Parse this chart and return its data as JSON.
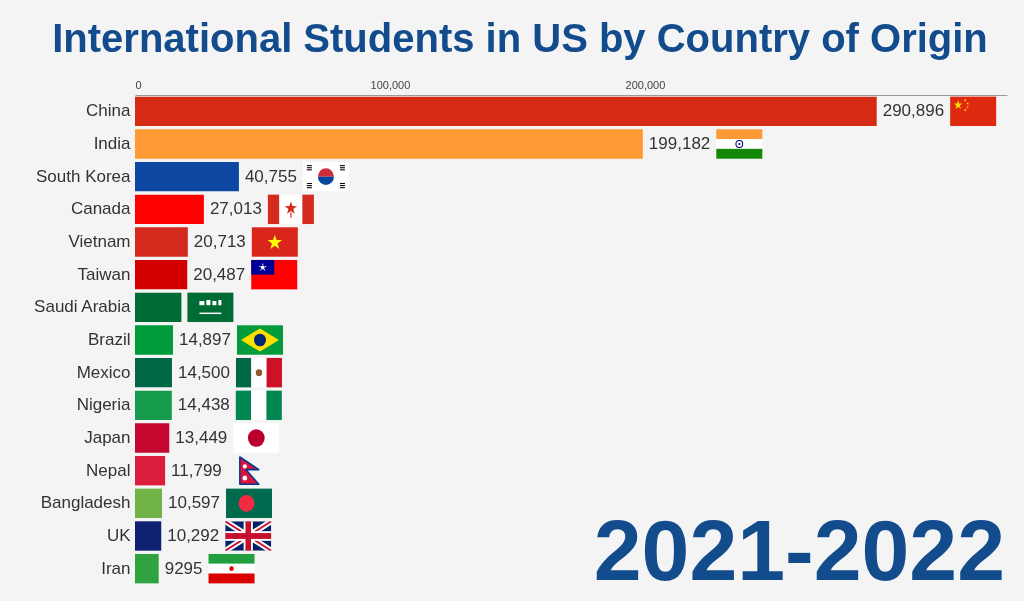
{
  "chart_data": {
    "type": "bar",
    "orientation": "horizontal",
    "title": "International Students in US by Country of Origin",
    "categories": [
      "China",
      "India",
      "South Korea",
      "Canada",
      "Vietnam",
      "Taiwan",
      "Saudi Arabia",
      "Brazil",
      "Mexico",
      "Nigeria",
      "Japan",
      "Nepal",
      "Bangladesh",
      "UK",
      "Iran"
    ],
    "values": [
      290896,
      199182,
      40755,
      27013,
      20713,
      20487,
      18200,
      14897,
      14500,
      14438,
      13449,
      11799,
      10597,
      10292,
      9295
    ],
    "colors": [
      "#d52b14",
      "#fd9a33",
      "#0d47a1",
      "#ff0000",
      "#d42a1e",
      "#d40000",
      "#006c35",
      "#009c3b",
      "#006847",
      "#169b4d",
      "#c4082e",
      "#dc1c3c",
      "#72b347",
      "#0d2170",
      "#2ea33f"
    ],
    "value_labels": [
      "290,896",
      "199,182",
      "40,755",
      "27,013",
      "20,713",
      "20,487",
      null,
      "14,897",
      "14,500",
      "14,438",
      "13,449",
      "11,799",
      "10,597",
      "10,292",
      "9295"
    ],
    "xlim": [
      0,
      342000
    ],
    "xticks": [
      0,
      {
        "value": 100000,
        "label": "100,000"
      },
      {
        "value": 200000,
        "label": "200,000"
      }
    ],
    "annotations": [
      "2021-2022"
    ]
  }
}
